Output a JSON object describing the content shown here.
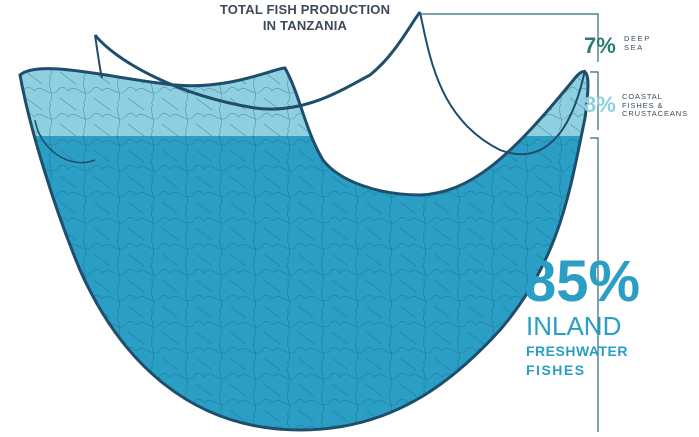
{
  "title_line1": "TOTAL FISH PRODUCTION",
  "title_line2": "IN TANZANIA",
  "colors": {
    "deep_sea": "#2e7d74",
    "coastal": "#8fd0e0",
    "inland": "#2a9ec4",
    "net_outline": "#1e4e6b",
    "leader": "#2d6a7c",
    "text_dark": "#3b4a5a"
  },
  "chart_data": {
    "type": "area",
    "series": [
      {
        "name": "DEEP SEA",
        "value_label": "7%",
        "value": 7,
        "color": "#2e7d74"
      },
      {
        "name": "COASTAL FISHES & CRUSTACEANS",
        "value_label": "8%",
        "value": 8,
        "color": "#8fd0e0"
      },
      {
        "name": "INLAND FRESHWATER FISHES",
        "value_label": "85%",
        "value": 85,
        "color": "#2a9ec4"
      }
    ],
    "labels": {
      "deep_line1": "DEEP",
      "deep_line2": "SEA",
      "coastal_line1": "COASTAL",
      "coastal_line2": "FISHES &",
      "coastal_line3": "CRUSTACEANS",
      "inland_line1": "INLAND",
      "inland_line2": "FRESHWATER",
      "inland_line3": "FISHES"
    }
  }
}
